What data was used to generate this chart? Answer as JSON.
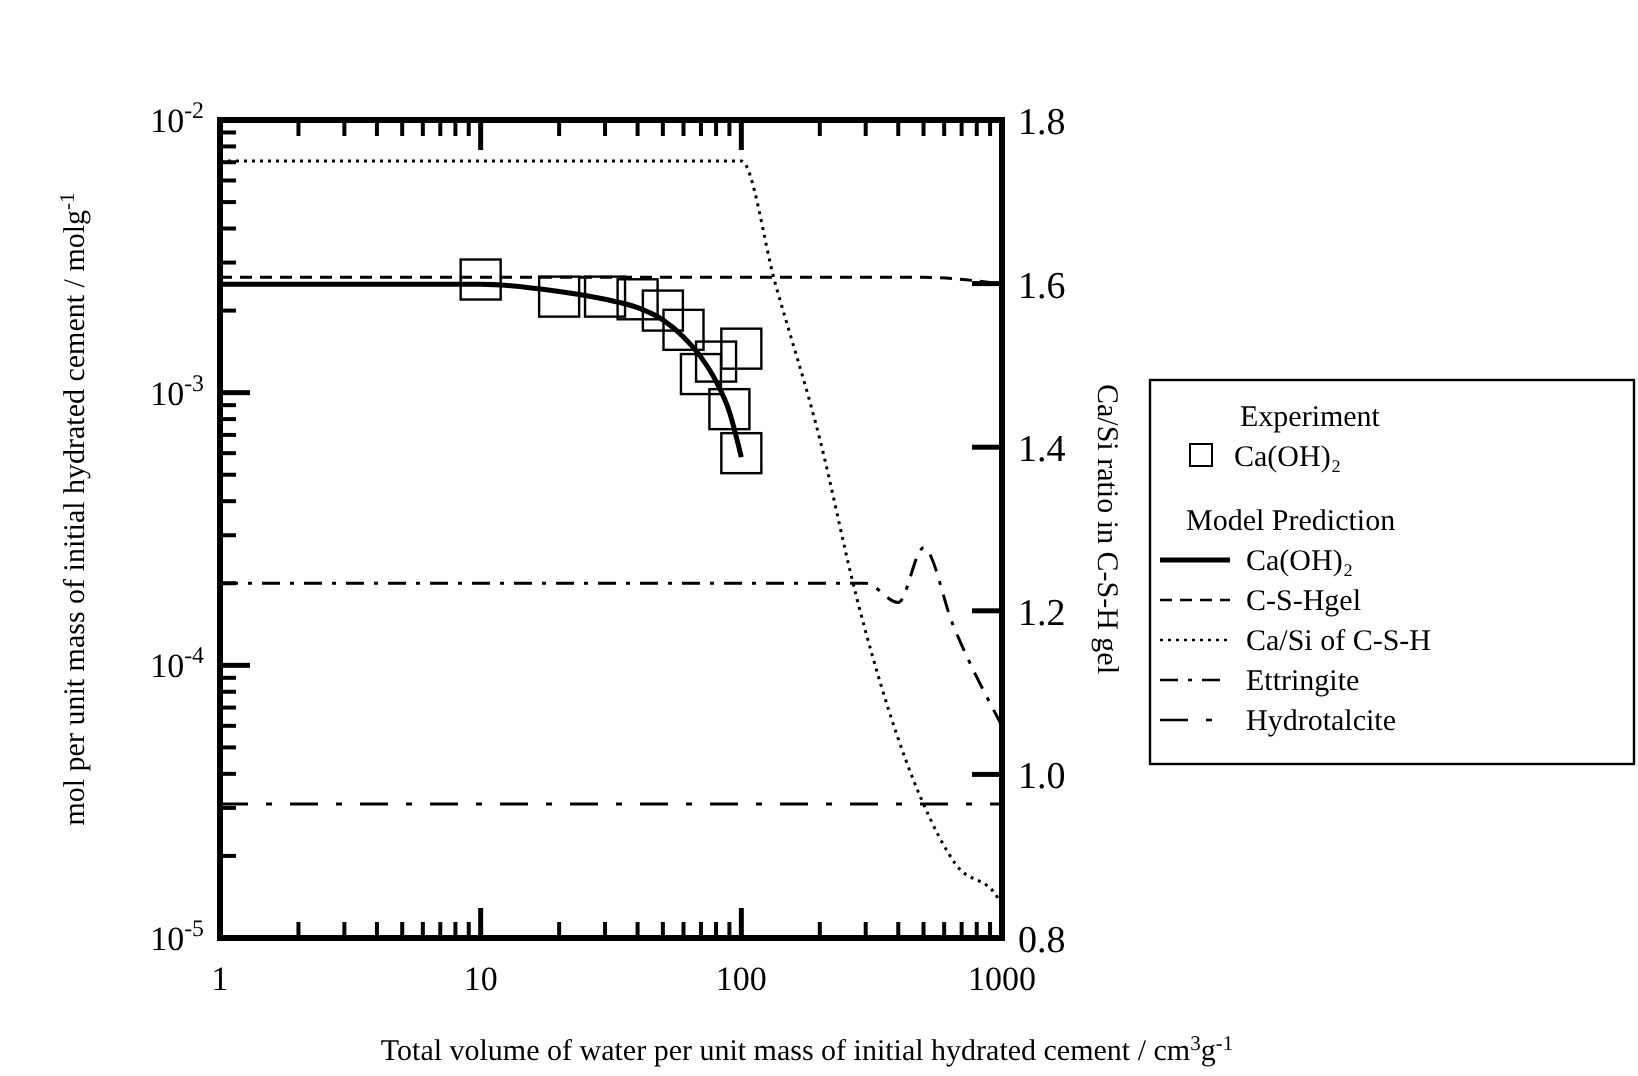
{
  "chart_data": {
    "type": "line",
    "xlabel": "Total volume of water per unit mass of initial hydrated cement / cm$^{3}$g$^{-1}$",
    "ylabel": "mol per unit mass of initial hydrated cement / molg$^{-1}$",
    "y2label": "Ca/Si ratio in C-S-H gel",
    "log": "xy",
    "xlim": [
      1,
      1000
    ],
    "xticks": [
      1,
      10,
      100,
      1000
    ],
    "ylim": [
      1e-05,
      0.01
    ],
    "yticks": [
      {
        "value": 1e-05,
        "label": "10$^{-5}$"
      },
      {
        "value": 0.0001,
        "label": "10$^{-4}$"
      },
      {
        "value": 0.001,
        "label": "10$^{-3}$"
      },
      {
        "value": 0.01,
        "label": "10$^{-2}$"
      }
    ],
    "y2lim": [
      0.8,
      1.8
    ],
    "y2ticks": [
      {
        "value": 0.8,
        "label": "0.8"
      },
      {
        "value": 1,
        "label": "1.0"
      },
      {
        "value": 1.2,
        "label": "1.2"
      },
      {
        "value": 1.4,
        "label": "1.4"
      },
      {
        "value": 1.6,
        "label": "1.6"
      },
      {
        "value": 1.8,
        "label": "1.8"
      }
    ],
    "legend": "right",
    "legend_title": "Experiment",
    "annotations": [
      "Model Prediction"
    ],
    "grid": false,
    "series": [
      {
        "name": "Ca(OH)₂",
        "type": "scatter",
        "marker": "square",
        "color": "#000000",
        "x": [
          10,
          20,
          30,
          40,
          50,
          60,
          100,
          80,
          70,
          90,
          100
        ],
        "values": [
          0.0026,
          0.00225,
          0.00225,
          0.0022,
          0.002,
          0.0017,
          0.00145,
          0.0013,
          0.00117,
          0.00087,
          0.0006
        ]
      },
      {
        "name": "Ca(OH)₂",
        "type": "line",
        "line_style": "solid",
        "color": "#000000",
        "x": [
          1,
          10,
          20,
          30,
          40,
          50,
          60,
          70,
          80,
          90,
          100
        ],
        "values": [
          0.0025,
          0.0025,
          0.00235,
          0.0022,
          0.00205,
          0.00185,
          0.0016,
          0.00135,
          0.0011,
          0.00085,
          0.00058
        ]
      },
      {
        "name": "C-S-Hgel",
        "type": "line",
        "line_style": "dashed",
        "color": "#000000",
        "x": [
          1,
          500,
          1000
        ],
        "values": [
          0.00265,
          0.00265,
          0.0025
        ]
      },
      {
        "name": "Ca/Si of C-S-H",
        "type": "line",
        "line_style": "dotted",
        "axis": "y2",
        "color": "#000000",
        "x": [
          1,
          100,
          135,
          200,
          275,
          490,
          665,
          960,
          1000
        ],
        "values": [
          1.75,
          1.75,
          1.6,
          1.41,
          1.22,
          0.97,
          0.89,
          0.85,
          0.84
        ]
      },
      {
        "name": "Ettringite",
        "type": "line",
        "line_style": "dashdot",
        "color": "#000000",
        "x": [
          1,
          300,
          400,
          500,
          650,
          1000
        ],
        "values": [
          0.0002,
          0.0002,
          0.00017,
          0.00027,
          0.00014,
          6e-05
        ]
      },
      {
        "name": "Hydrotalcite",
        "type": "line",
        "line_style": "longdashdot",
        "color": "#000000",
        "x": [
          1,
          1000
        ],
        "values": [
          3.1e-05,
          3.1e-05
        ]
      }
    ]
  }
}
